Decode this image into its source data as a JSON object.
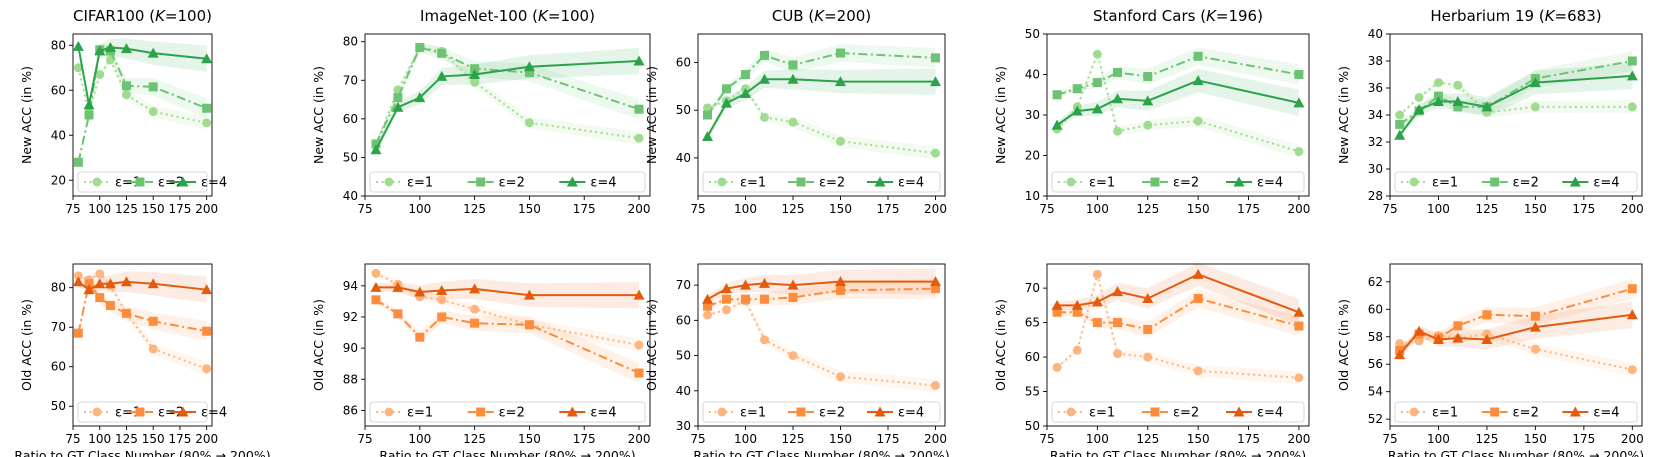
{
  "figure": {
    "xlabel": "Ratio to GT Class Number (80% → 200%)",
    "ylabel_new": "New ACC (in %)",
    "ylabel_old": "Old ACC (in %)",
    "xticks": [
      75,
      100,
      125,
      150,
      175,
      200
    ],
    "xlim": [
      75,
      205
    ],
    "legend": [
      "ε=1",
      "ε=2",
      "ε=4"
    ],
    "colors": {
      "new": [
        "#9fdc8f",
        "#6cc373",
        "#2ca24a"
      ],
      "old": [
        "#fdb57f",
        "#fd8d3c",
        "#e55b0e"
      ]
    }
  },
  "chart_data": [
    {
      "type": "line",
      "panel": "new",
      "title_main": "CIFAR100 (",
      "title_italic": "K",
      "title_rest": "=100)",
      "ylabel": "New ACC (in %)",
      "ylim": [
        13,
        85
      ],
      "yticks": [
        20,
        40,
        60,
        80
      ],
      "legend_placement": "bottom",
      "x": [
        80,
        90,
        100,
        110,
        125,
        150,
        200
      ],
      "series": [
        {
          "name": "ε=1",
          "values": [
            70,
            50,
            67,
            73.5,
            58,
            50.5,
            45.5
          ]
        },
        {
          "name": "ε=2",
          "values": [
            28,
            49,
            78,
            77.5,
            62,
            61.5,
            52
          ]
        },
        {
          "name": "ε=4",
          "values": [
            79.5,
            53.5,
            77.5,
            79,
            78.5,
            76.5,
            74
          ]
        }
      ]
    },
    {
      "type": "line",
      "panel": "new",
      "title_main": "ImageNet-100 (",
      "title_italic": "K",
      "title_rest": "=100)",
      "ylabel": "New ACC (in %)",
      "ylim": [
        40,
        82
      ],
      "yticks": [
        40,
        50,
        60,
        70,
        80
      ],
      "legend_placement": "bottom",
      "x": [
        80,
        90,
        100,
        110,
        125,
        150,
        200
      ],
      "series": [
        {
          "name": "ε=1",
          "values": [
            53.5,
            67.5,
            78.5,
            77.5,
            69.5,
            59,
            55
          ]
        },
        {
          "name": "ε=2",
          "values": [
            53.5,
            65.5,
            78.5,
            77,
            73,
            72,
            62.5
          ]
        },
        {
          "name": "ε=4",
          "values": [
            52,
            63,
            65.5,
            71,
            71.5,
            73.5,
            75
          ]
        }
      ]
    },
    {
      "type": "line",
      "panel": "new",
      "title_main": "CUB (",
      "title_italic": "K",
      "title_rest": "=200)",
      "ylabel": "New ACC (in %)",
      "ylim": [
        32,
        66
      ],
      "yticks": [
        40,
        50,
        60
      ],
      "legend_placement": "bottom",
      "x": [
        80,
        90,
        100,
        110,
        125,
        150,
        200
      ],
      "series": [
        {
          "name": "ε=1",
          "values": [
            50.5,
            52,
            54.5,
            48.5,
            47.5,
            43.5,
            41
          ]
        },
        {
          "name": "ε=2",
          "values": [
            49,
            54.5,
            57.5,
            61.5,
            59.5,
            62,
            61
          ]
        },
        {
          "name": "ε=4",
          "values": [
            44.5,
            51.5,
            53.5,
            56.5,
            56.5,
            56,
            56
          ]
        }
      ]
    },
    {
      "type": "line",
      "panel": "new",
      "title_main": "Stanford Cars (",
      "title_italic": "K",
      "title_rest": "=196)",
      "ylabel": "New ACC (in %)",
      "ylim": [
        10,
        50
      ],
      "yticks": [
        10,
        20,
        30,
        40,
        50
      ],
      "legend_placement": "bottom",
      "x": [
        80,
        90,
        100,
        110,
        125,
        150,
        200
      ],
      "series": [
        {
          "name": "ε=1",
          "values": [
            26.5,
            32,
            45,
            26,
            27.5,
            28.5,
            21
          ]
        },
        {
          "name": "ε=2",
          "values": [
            35,
            36.5,
            38,
            40.5,
            39.5,
            44.5,
            40
          ]
        },
        {
          "name": "ε=4",
          "values": [
            27.5,
            31,
            31.5,
            34,
            33.5,
            38.5,
            33
          ]
        }
      ]
    },
    {
      "type": "line",
      "panel": "new",
      "title_main": "Herbarium 19 (",
      "title_italic": "K",
      "title_rest": "=683)",
      "ylabel": "New ACC (in %)",
      "ylim": [
        28,
        40
      ],
      "yticks": [
        28,
        30,
        32,
        34,
        36,
        38,
        40
      ],
      "legend_placement": "bottom",
      "x": [
        80,
        90,
        100,
        110,
        125,
        150,
        200
      ],
      "series": [
        {
          "name": "ε=1",
          "values": [
            34,
            35.3,
            36.4,
            36.2,
            34.2,
            34.6,
            34.6
          ]
        },
        {
          "name": "ε=2",
          "values": [
            33.3,
            34.3,
            35.4,
            34.6,
            34.6,
            36.7,
            38
          ]
        },
        {
          "name": "ε=4",
          "values": [
            32.5,
            34.4,
            35,
            35,
            34.6,
            36.4,
            36.9
          ]
        }
      ]
    },
    {
      "type": "line",
      "panel": "old",
      "title_main": "",
      "title_italic": "",
      "title_rest": "",
      "ylabel": "Old ACC (in %)",
      "ylim": [
        45,
        86
      ],
      "yticks": [
        50,
        60,
        70,
        80
      ],
      "legend_placement": "bottom",
      "x": [
        80,
        90,
        100,
        110,
        125,
        150,
        200
      ],
      "series": [
        {
          "name": "ε=1",
          "values": [
            83,
            82,
            83.5,
            80.5,
            73.5,
            64.5,
            59.5
          ]
        },
        {
          "name": "ε=2",
          "values": [
            68.5,
            81,
            77.5,
            75.5,
            73.5,
            71.5,
            69
          ]
        },
        {
          "name": "ε=4",
          "values": [
            81.5,
            79.5,
            81,
            81,
            81.5,
            81,
            79.5
          ]
        }
      ]
    },
    {
      "type": "line",
      "panel": "old",
      "title_main": "",
      "title_italic": "",
      "title_rest": "",
      "ylabel": "Old ACC (in %)",
      "ylim": [
        85,
        95.4
      ],
      "yticks": [
        86,
        88,
        90,
        92,
        94
      ],
      "legend_placement": "bottom",
      "x": [
        80,
        90,
        100,
        110,
        125,
        150,
        200
      ],
      "series": [
        {
          "name": "ε=1",
          "values": [
            94.8,
            94.1,
            93.3,
            93.1,
            92.5,
            91.5,
            90.2
          ]
        },
        {
          "name": "ε=2",
          "values": [
            93.1,
            92.2,
            90.7,
            92,
            91.6,
            91.5,
            88.4
          ]
        },
        {
          "name": "ε=4",
          "values": [
            93.9,
            93.9,
            93.6,
            93.7,
            93.8,
            93.4,
            93.4
          ]
        }
      ]
    },
    {
      "type": "line",
      "panel": "old",
      "title_main": "",
      "title_italic": "",
      "title_rest": "",
      "ylabel": "Old ACC (in %)",
      "ylim": [
        30,
        76
      ],
      "yticks": [
        30,
        40,
        50,
        60,
        70
      ],
      "legend_placement": "bottom",
      "x": [
        80,
        90,
        100,
        110,
        125,
        150,
        200
      ],
      "series": [
        {
          "name": "ε=1",
          "values": [
            61.5,
            63,
            65.5,
            54.5,
            50,
            44,
            41.5
          ]
        },
        {
          "name": "ε=2",
          "values": [
            64,
            66,
            66,
            66,
            66.5,
            68.5,
            69
          ]
        },
        {
          "name": "ε=4",
          "values": [
            66,
            69,
            70,
            70.5,
            70,
            71,
            71
          ]
        }
      ]
    },
    {
      "type": "line",
      "panel": "old",
      "title_main": "",
      "title_italic": "",
      "title_rest": "",
      "ylabel": "Old ACC (in %)",
      "ylim": [
        50,
        73.5
      ],
      "yticks": [
        50,
        55,
        60,
        65,
        70
      ],
      "legend_placement": "bottom",
      "x": [
        80,
        90,
        100,
        110,
        125,
        150,
        200
      ],
      "series": [
        {
          "name": "ε=1",
          "values": [
            58.5,
            61,
            72,
            60.5,
            60,
            58,
            57
          ]
        },
        {
          "name": "ε=2",
          "values": [
            66.5,
            66.5,
            65,
            65,
            64,
            68.5,
            64.5
          ]
        },
        {
          "name": "ε=4",
          "values": [
            67.5,
            67.5,
            68,
            69.5,
            68.5,
            72,
            66.5
          ]
        }
      ]
    },
    {
      "type": "line",
      "panel": "old",
      "title_main": "",
      "title_italic": "",
      "title_rest": "",
      "ylabel": "Old ACC (in %)",
      "ylim": [
        51.5,
        63.3
      ],
      "yticks": [
        52,
        54,
        56,
        58,
        60,
        62
      ],
      "legend_placement": "bottom",
      "x": [
        80,
        90,
        100,
        110,
        125,
        150,
        200
      ],
      "series": [
        {
          "name": "ε=1",
          "values": [
            57.5,
            57.7,
            58.1,
            57.9,
            58.2,
            57.1,
            55.6
          ]
        },
        {
          "name": "ε=2",
          "values": [
            57,
            58.2,
            57.9,
            58.8,
            59.6,
            59.5,
            61.5
          ]
        },
        {
          "name": "ε=4",
          "values": [
            56.7,
            58.4,
            57.8,
            57.9,
            57.8,
            58.7,
            59.6
          ]
        }
      ]
    }
  ]
}
